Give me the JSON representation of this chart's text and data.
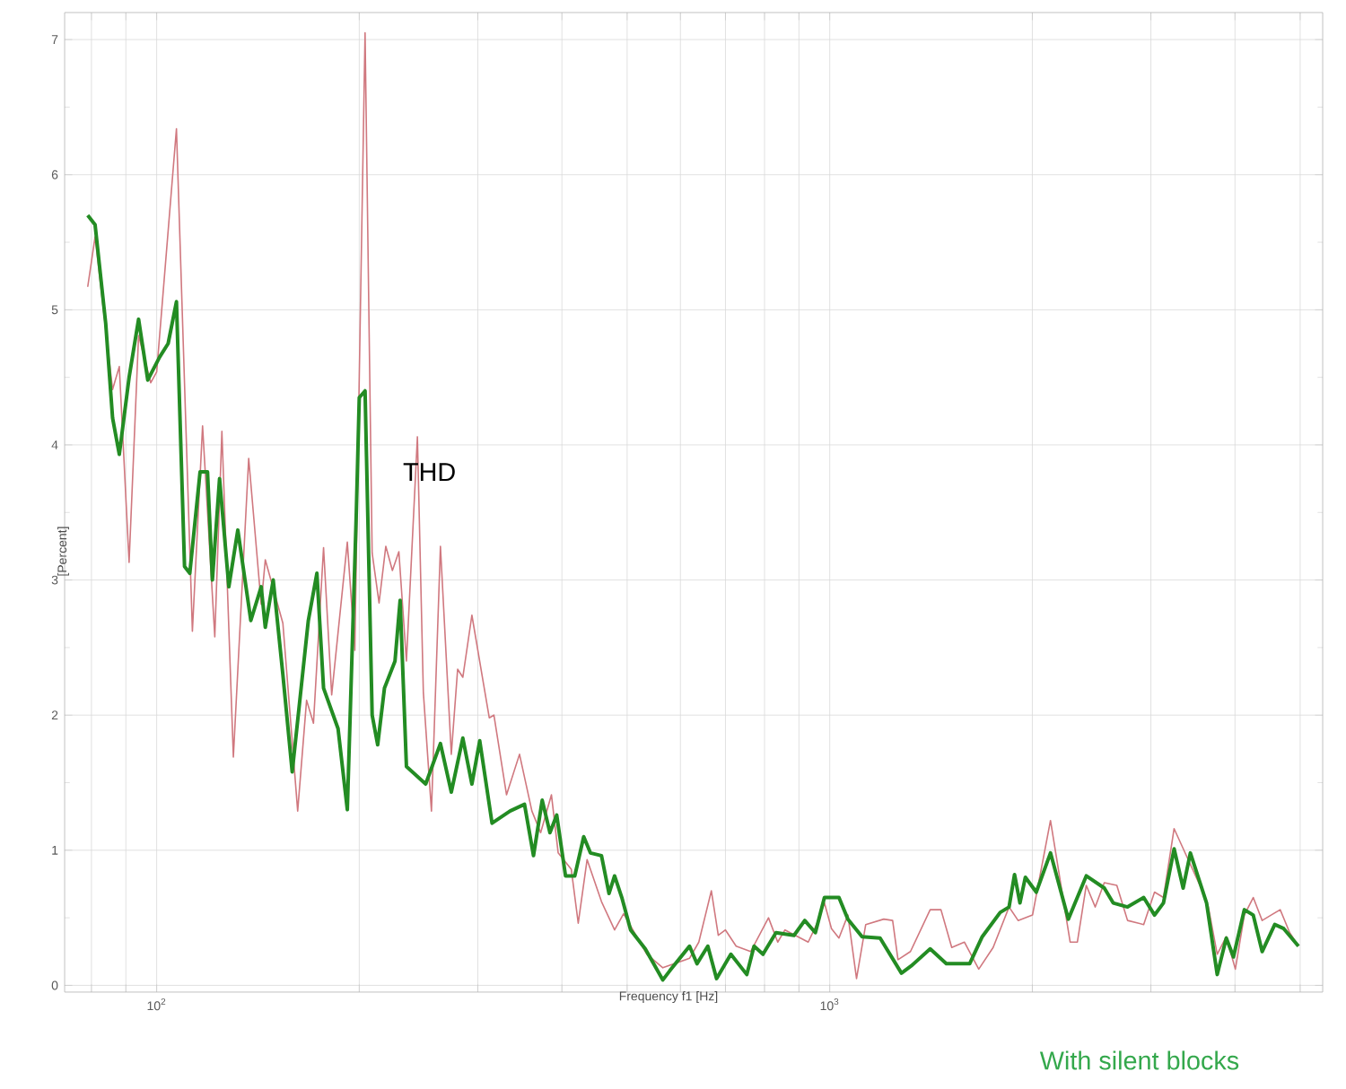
{
  "chart_data": {
    "type": "line",
    "title": "THD",
    "xlabel": "Frequency f1  [Hz]",
    "ylabel": "[Percent]",
    "annotations": [
      "With silent blocks"
    ],
    "log": "x",
    "grid": true,
    "marker": "none",
    "line_style": "solid",
    "xlim": [
      73,
      5400
    ],
    "ylim": [
      -0.05,
      7.2
    ],
    "xticks": [
      {
        "value": 80,
        "label": null
      },
      {
        "value": 90,
        "label": null
      },
      {
        "value": 100,
        "label": "10$^{2}$"
      },
      {
        "value": 200,
        "label": null
      },
      {
        "value": 300,
        "label": null
      },
      {
        "value": 400,
        "label": null
      },
      {
        "value": 500,
        "label": null
      },
      {
        "value": 600,
        "label": null
      },
      {
        "value": 700,
        "label": null
      },
      {
        "value": 800,
        "label": null
      },
      {
        "value": 900,
        "label": null
      },
      {
        "value": 1000,
        "label": "10$^{3}$"
      },
      {
        "value": 2000,
        "label": null
      },
      {
        "value": 3000,
        "label": null
      },
      {
        "value": 4000,
        "label": null
      },
      {
        "value": 5000,
        "label": null
      }
    ],
    "yticks": [
      0,
      1,
      2,
      3,
      4,
      5,
      6,
      7
    ],
    "series": [
      {
        "color": "#d0787f",
        "x": [
          79,
          81,
          86,
          88,
          91,
          94,
          98,
          100,
          107,
          113,
          117,
          122,
          125,
          130,
          137,
          143,
          145,
          154,
          162,
          167,
          171,
          177,
          182,
          192,
          197,
          200,
          204,
          209,
          214,
          219,
          224,
          229,
          235,
          244,
          249,
          256,
          264,
          274,
          280,
          285,
          294,
          312,
          317,
          331,
          346,
          361,
          372,
          386,
          395,
          413,
          423,
          436,
          458,
          479,
          494,
          535,
          565,
          619,
          639,
          667,
          683,
          700,
          726,
          763,
          811,
          837,
          858,
          929,
          958,
          982,
          1006,
          1032,
          1064,
          1096,
          1131,
          1203,
          1240,
          1263,
          1318,
          1410,
          1463,
          1518,
          1585,
          1665,
          1749,
          1847,
          1905,
          2001,
          2128,
          2276,
          2333,
          2405,
          2480,
          2558,
          2670,
          2770,
          2927,
          3038,
          3132,
          3248,
          3585,
          3652,
          3765,
          3883,
          4005,
          4130,
          4258,
          4390,
          4526,
          4669,
          4824,
          4970
        ],
        "values": [
          5.17,
          5.54,
          4.41,
          4.58,
          3.13,
          4.81,
          4.46,
          4.54,
          6.34,
          2.62,
          4.14,
          2.58,
          4.1,
          1.69,
          3.9,
          2.82,
          3.15,
          2.68,
          1.29,
          2.11,
          1.94,
          3.24,
          2.15,
          3.28,
          2.48,
          4.5,
          7.05,
          3.2,
          2.83,
          3.25,
          3.07,
          3.21,
          2.4,
          4.06,
          2.17,
          1.29,
          3.25,
          1.71,
          2.34,
          2.28,
          2.74,
          1.98,
          2.0,
          1.41,
          1.71,
          1.29,
          1.13,
          1.41,
          0.98,
          0.86,
          0.46,
          0.93,
          0.62,
          0.41,
          0.53,
          0.23,
          0.13,
          0.2,
          0.32,
          0.7,
          0.37,
          0.41,
          0.29,
          0.25,
          0.5,
          0.32,
          0.41,
          0.32,
          0.46,
          0.61,
          0.42,
          0.35,
          0.52,
          0.05,
          0.45,
          0.49,
          0.48,
          0.19,
          0.25,
          0.56,
          0.56,
          0.28,
          0.32,
          0.12,
          0.28,
          0.58,
          0.48,
          0.52,
          1.22,
          0.32,
          0.32,
          0.74,
          0.58,
          0.76,
          0.74,
          0.48,
          0.45,
          0.69,
          0.65,
          1.16,
          0.69,
          0.58,
          0.23,
          0.36,
          0.12,
          0.52,
          0.65,
          0.48,
          0.52,
          0.56,
          0.39,
          0.29
        ]
      },
      {
        "color": "#238c23",
        "x": [
          79,
          81,
          84,
          86,
          88,
          91,
          94,
          97,
          101,
          104,
          107,
          110,
          112,
          116,
          119,
          121,
          124,
          128,
          132,
          138,
          143,
          145,
          149,
          154,
          159,
          168,
          173,
          177,
          186,
          192,
          198,
          200,
          204,
          209,
          213,
          218,
          226,
          230,
          235,
          251,
          264,
          274,
          285,
          294,
          302,
          315,
          335,
          352,
          363,
          374,
          384,
          393,
          405,
          418,
          431,
          441,
          458,
          470,
          479,
          491,
          506,
          532,
          565,
          579,
          619,
          635,
          659,
          679,
          713,
          753,
          772,
          796,
          832,
          885,
          918,
          952,
          982,
          1032,
          1064,
          1117,
          1188,
          1278,
          1326,
          1410,
          1490,
          1614,
          1685,
          1792,
          1847,
          1882,
          1917,
          1953,
          2027,
          2128,
          2262,
          2405,
          2558,
          2637,
          2770,
          2927,
          3038,
          3132,
          3248,
          3350,
          3434,
          3630,
          3765,
          3883,
          3980,
          4130,
          4258,
          4390,
          4583,
          4726,
          4970
        ],
        "values": [
          5.7,
          5.63,
          4.9,
          4.2,
          3.93,
          4.5,
          4.93,
          4.48,
          4.65,
          4.75,
          5.06,
          3.1,
          3.05,
          3.8,
          3.8,
          3.0,
          3.75,
          2.95,
          3.37,
          2.7,
          2.95,
          2.65,
          3.0,
          2.3,
          1.58,
          2.7,
          3.05,
          2.2,
          1.9,
          1.3,
          3.5,
          4.35,
          4.4,
          2.0,
          1.78,
          2.2,
          2.4,
          2.85,
          1.62,
          1.49,
          1.79,
          1.43,
          1.83,
          1.49,
          1.81,
          1.2,
          1.29,
          1.34,
          0.96,
          1.37,
          1.13,
          1.26,
          0.81,
          0.81,
          1.1,
          0.98,
          0.96,
          0.68,
          0.81,
          0.65,
          0.41,
          0.27,
          0.04,
          0.11,
          0.29,
          0.16,
          0.29,
          0.05,
          0.23,
          0.08,
          0.29,
          0.23,
          0.39,
          0.37,
          0.48,
          0.39,
          0.65,
          0.65,
          0.49,
          0.36,
          0.35,
          0.09,
          0.15,
          0.27,
          0.16,
          0.16,
          0.36,
          0.54,
          0.58,
          0.82,
          0.61,
          0.8,
          0.69,
          0.98,
          0.49,
          0.81,
          0.72,
          0.61,
          0.58,
          0.65,
          0.52,
          0.61,
          1.01,
          0.72,
          0.98,
          0.61,
          0.08,
          0.35,
          0.21,
          0.56,
          0.52,
          0.25,
          0.45,
          0.42,
          0.29
        ]
      }
    ]
  }
}
